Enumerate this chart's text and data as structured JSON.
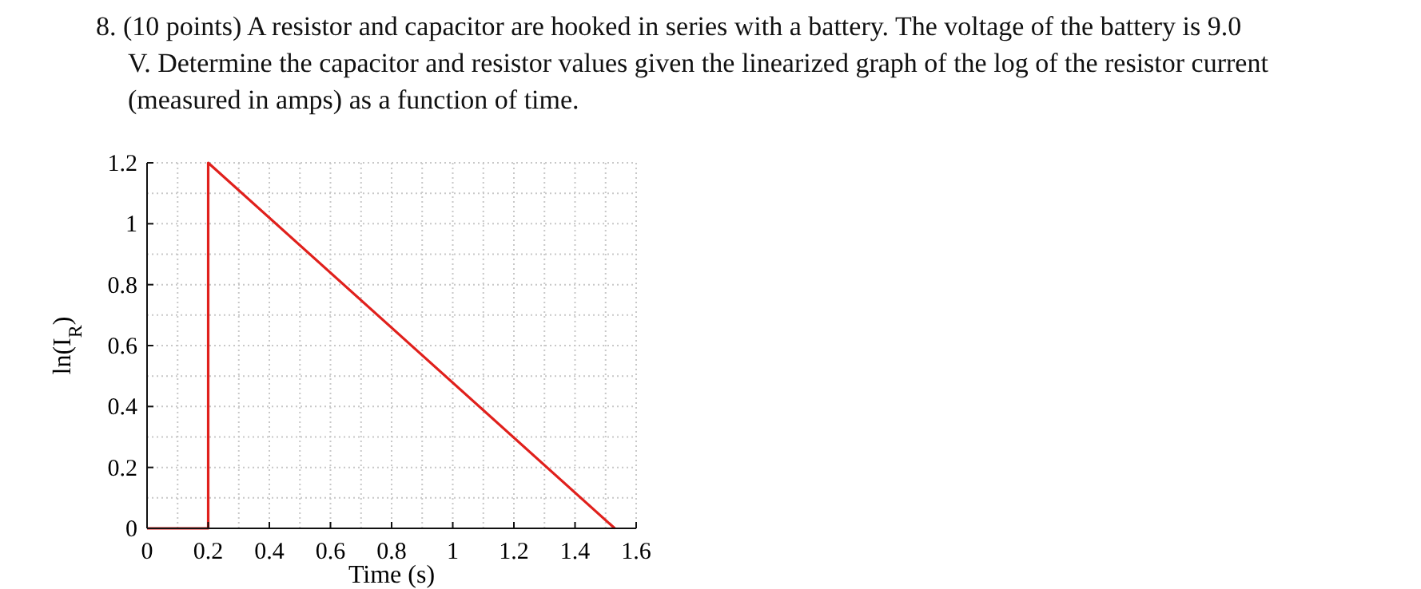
{
  "chart_data": {
    "type": "line",
    "title": "8. (10 points) A resistor and capacitor are hooked in series with a battery. The voltage of the battery is 9.0 V. Determine the capacitor and resistor values given the linearized graph of the log of the resistor current (measured in amps) as a function of time.",
    "xlabel": "Time (s)",
    "ylabel": "ln(I$_{R}$)",
    "x": [
      0,
      0.2,
      0.2,
      1.53
    ],
    "series": [
      {
        "color": "#e0201c",
        "values": [
          0,
          0,
          1.2,
          0
        ]
      }
    ],
    "xlim": [
      0,
      1.6
    ],
    "ylim": [
      0,
      1.2
    ],
    "xticks": [
      0,
      {
        "value": 0.1,
        "label": null
      },
      0.2,
      {
        "value": 0.3,
        "label": null
      },
      0.4,
      {
        "value": 0.5,
        "label": null
      },
      0.6,
      {
        "value": 0.7,
        "label": null
      },
      0.8,
      {
        "value": 0.9,
        "label": null
      },
      1,
      {
        "value": 1.1,
        "label": null
      },
      1.2,
      {
        "value": 1.3,
        "label": null
      },
      1.4,
      {
        "value": 1.5,
        "label": null
      },
      1.6
    ],
    "yticks": [
      0,
      {
        "value": 0.1,
        "label": null
      },
      0.2,
      {
        "value": 0.3,
        "label": null
      },
      0.4,
      {
        "value": 0.5,
        "label": null
      },
      0.6,
      {
        "value": 0.7,
        "label": null
      },
      0.8,
      {
        "value": 0.9,
        "label": null
      },
      1,
      {
        "value": 1.1,
        "label": null
      },
      1.2
    ],
    "grid": true,
    "line_style": "solid",
    "marker": "none"
  }
}
